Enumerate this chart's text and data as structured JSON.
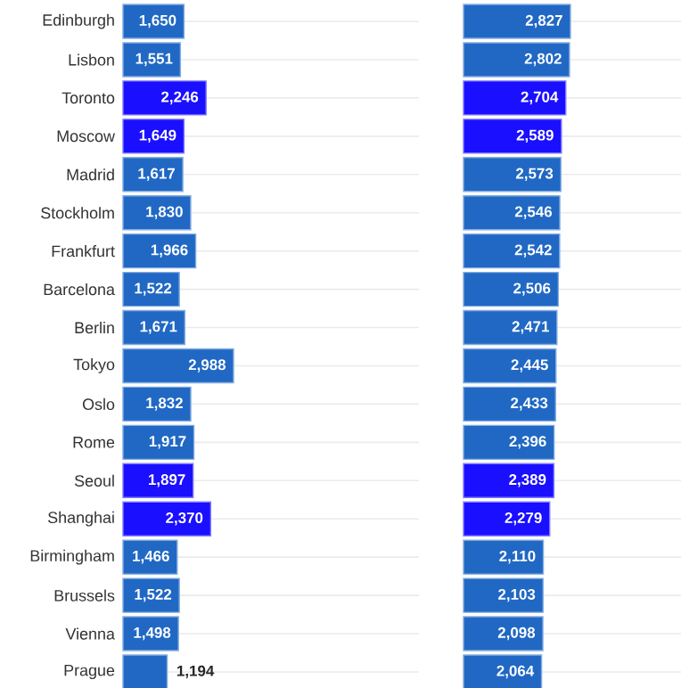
{
  "chart_data": [
    {
      "type": "bar",
      "orientation": "horizontal",
      "categories": [
        "Edinburgh",
        "Lisbon",
        "Toronto",
        "Moscow",
        "Madrid",
        "Stockholm",
        "Frankfurt",
        "Barcelona",
        "Berlin",
        "Tokyo",
        "Oslo",
        "Rome",
        "Seoul",
        "Shanghai",
        "Birmingham",
        "Brussels",
        "Vienna",
        "Prague"
      ],
      "values": [
        1650,
        1551,
        2246,
        1649,
        1617,
        1830,
        1966,
        1522,
        1671,
        2988,
        1832,
        1917,
        1897,
        2370,
        1466,
        1522,
        1498,
        1194
      ],
      "value_labels": [
        "1,650",
        "1,551",
        "2,246",
        "1,649",
        "1,617",
        "1,830",
        "1,966",
        "1,522",
        "1,671",
        "2,988",
        "1,832",
        "1,917",
        "1,897",
        "2,370",
        "1,466",
        "1,522",
        "1,498",
        "1,194"
      ],
      "colors": [
        "#2068c4",
        "#2068c4",
        "#1a0fff",
        "#1a0fff",
        "#2068c4",
        "#2068c4",
        "#2068c4",
        "#2068c4",
        "#2068c4",
        "#2068c4",
        "#2068c4",
        "#2068c4",
        "#1a0fff",
        "#1a0fff",
        "#2068c4",
        "#2068c4",
        "#2068c4",
        "#2068c4"
      ],
      "xlim": [
        0,
        8000
      ],
      "grid": "y",
      "tick_labels": "y"
    },
    {
      "type": "bar",
      "orientation": "horizontal",
      "categories": [
        null,
        null,
        null,
        null,
        null,
        null,
        null,
        null,
        null,
        null,
        null,
        null,
        null,
        null,
        null,
        null,
        null,
        null
      ],
      "values": [
        2827,
        2802,
        2704,
        2589,
        2573,
        2546,
        2542,
        2506,
        2471,
        2445,
        2433,
        2396,
        2389,
        2279,
        2110,
        2103,
        2098,
        2064
      ],
      "value_labels": [
        "2,827",
        "2,802",
        "2,704",
        "2,589",
        "2,573",
        "2,546",
        "2,542",
        "2,506",
        "2,471",
        "2,445",
        "2,433",
        "2,396",
        "2,389",
        "2,279",
        "2,110",
        "2,103",
        "2,098",
        "2,064"
      ],
      "colors": [
        "#2068c4",
        "#2068c4",
        "#1a0fff",
        "#1a0fff",
        "#2068c4",
        "#2068c4",
        "#2068c4",
        "#2068c4",
        "#2068c4",
        "#2068c4",
        "#2068c4",
        "#2068c4",
        "#1a0fff",
        "#1a0fff",
        "#2068c4",
        "#2068c4",
        "#2068c4",
        "#2068c4"
      ],
      "xlim": [
        0,
        5750
      ],
      "grid": "y",
      "tick_labels": false
    }
  ]
}
